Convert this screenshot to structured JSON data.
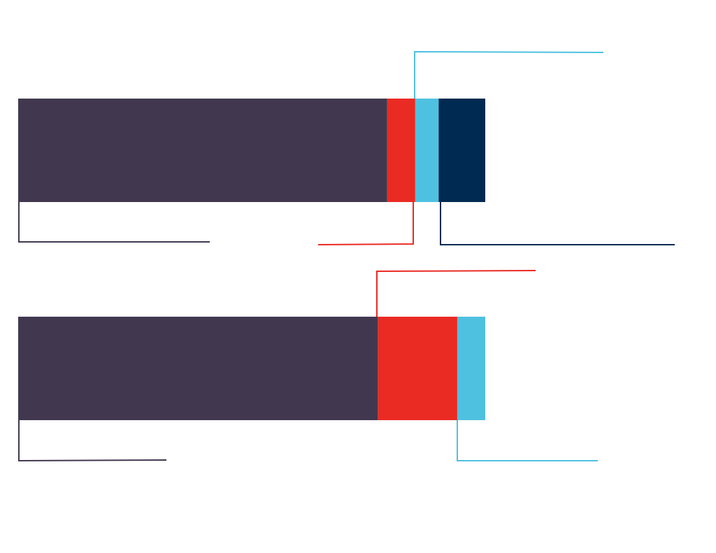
{
  "chart_data": {
    "type": "bar",
    "orientation": "horizontal",
    "stacked": true,
    "categories": [
      null,
      null
    ],
    "xlim": [
      0,
      100
    ],
    "series": [
      {
        "color": "#413850",
        "values": [
          79,
          77
        ]
      },
      {
        "color": "#ea2b24",
        "values": [
          6,
          17
        ]
      },
      {
        "color": "#4fc1e0",
        "values": [
          5,
          6
        ]
      },
      {
        "color": "#012a52",
        "values": [
          10,
          null
        ]
      }
    ]
  }
}
